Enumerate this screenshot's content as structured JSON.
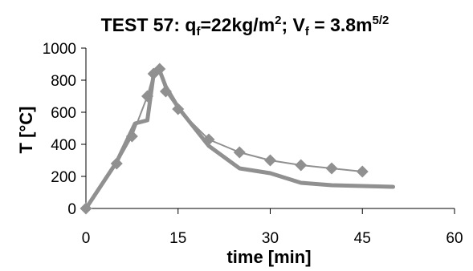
{
  "chart_data": {
    "type": "line",
    "title": {
      "prefix": "TEST 57: q",
      "sub1": "f",
      "mid": "=22kg/m",
      "sup1": "2",
      "mid2": "; V",
      "sub2": "f",
      "mid3": " = 3.8m",
      "sup2": "5/2"
    },
    "xlabel": "time [min]",
    "ylabel": "T [°C]",
    "xlim": [
      0,
      60
    ],
    "ylim": [
      0,
      1000
    ],
    "xticks": [
      0,
      15,
      30,
      45,
      60
    ],
    "yticks": [
      0,
      200,
      400,
      600,
      800,
      1000
    ],
    "grid": false,
    "legend": "none",
    "series": [
      {
        "marker": "diamond",
        "color": "#909090",
        "line_width": 2,
        "points": [
          [
            0,
            0
          ],
          [
            5,
            280
          ],
          [
            7.5,
            450
          ],
          [
            10,
            700
          ],
          [
            11,
            840
          ],
          [
            12,
            870
          ],
          [
            13,
            730
          ],
          [
            15,
            620
          ],
          [
            20,
            430
          ],
          [
            25,
            350
          ],
          [
            30,
            300
          ],
          [
            35,
            270
          ],
          [
            40,
            250
          ],
          [
            45,
            230
          ]
        ]
      },
      {
        "marker": "none",
        "color": "#909090",
        "line_width": 5,
        "points": [
          [
            0,
            0
          ],
          [
            5,
            290
          ],
          [
            8,
            530
          ],
          [
            10,
            550
          ],
          [
            11,
            830
          ],
          [
            12,
            860
          ],
          [
            13,
            760
          ],
          [
            15,
            630
          ],
          [
            20,
            390
          ],
          [
            25,
            250
          ],
          [
            30,
            220
          ],
          [
            35,
            160
          ],
          [
            40,
            145
          ],
          [
            45,
            140
          ],
          [
            50,
            135
          ]
        ]
      }
    ]
  }
}
